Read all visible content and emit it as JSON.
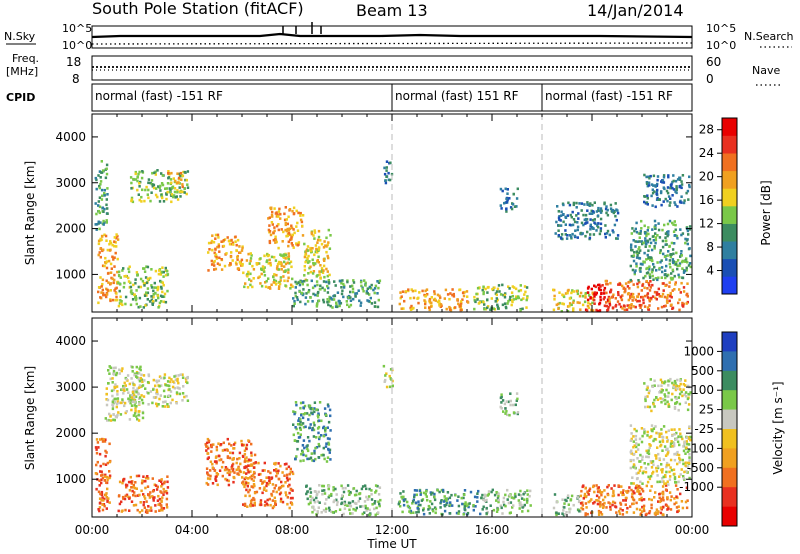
{
  "header": {
    "station": "South Pole Station (fitACF)",
    "beam": "Beam 13",
    "date": "14/Jan/2014"
  },
  "top_panels": {
    "nsky_label": "N.Sky",
    "nsky_ticks": [
      "10^5",
      "10^0"
    ],
    "nsearch_label": "N.Search",
    "freq_label_line1": "Freq.",
    "freq_label_line2": "[MHz]",
    "freq_ticks": [
      "18",
      "8"
    ],
    "nave_label": "Nave",
    "nave_ticks": [
      "60",
      "0"
    ],
    "cpid_label": "CPID",
    "cpid_segments": [
      {
        "label": "normal (fast) -151 RF",
        "start_hour": 0
      },
      {
        "label": "normal (fast) 151 RF",
        "start_hour": 12
      },
      {
        "label": "normal (fast) -151 RF",
        "start_hour": 18
      }
    ]
  },
  "chart_data": [
    {
      "type": "heatmap",
      "title": "Power",
      "ylabel": "Slant Range [km]",
      "xlabel": "Time UT",
      "x_ticks": [
        "00:00",
        "04:00",
        "08:00",
        "12:00",
        "16:00",
        "20:00",
        "00:00"
      ],
      "y_ticks": [
        1000,
        2000,
        3000,
        4000
      ],
      "ylim": [
        180,
        4500
      ],
      "xlim_hours": [
        0,
        24
      ],
      "colorbar": {
        "label": "Power [dB]",
        "ticks": [
          4,
          8,
          12,
          16,
          20,
          24,
          28
        ],
        "range": [
          0,
          30
        ],
        "colors": [
          "#1f3ff0",
          "#1a4fb4",
          "#2f7fa0",
          "#3c8c60",
          "#7ac848",
          "#f0d020",
          "#f0a020",
          "#f07020",
          "#e83020",
          "#e80000"
        ]
      },
      "clusters": [
        {
          "t0": 0.1,
          "t1": 0.6,
          "r0": 2000,
          "r1": 3500,
          "level": 3
        },
        {
          "t0": 0.2,
          "t1": 1.0,
          "r0": 400,
          "r1": 1900,
          "level": 6
        },
        {
          "t0": 1.5,
          "t1": 3.8,
          "r0": 2600,
          "r1": 3300,
          "level": 4
        },
        {
          "t0": 3.0,
          "t1": 3.6,
          "r0": 2900,
          "r1": 3250,
          "level": 6
        },
        {
          "t0": 1.0,
          "t1": 3.0,
          "r0": 300,
          "r1": 1200,
          "level": 4
        },
        {
          "t0": 4.6,
          "t1": 6.0,
          "r0": 1100,
          "r1": 1900,
          "level": 6
        },
        {
          "t0": 6.0,
          "t1": 8.0,
          "r0": 700,
          "r1": 1500,
          "level": 5
        },
        {
          "t0": 7.0,
          "t1": 8.4,
          "r0": 1600,
          "r1": 2500,
          "level": 6
        },
        {
          "t0": 8.4,
          "t1": 9.5,
          "r0": 900,
          "r1": 2000,
          "level": 5
        },
        {
          "t0": 8.0,
          "t1": 11.5,
          "r0": 300,
          "r1": 900,
          "level": 3
        },
        {
          "t0": 11.6,
          "t1": 12.0,
          "r0": 3000,
          "r1": 3500,
          "level": 2
        },
        {
          "t0": 12.2,
          "t1": 15.0,
          "r0": 250,
          "r1": 700,
          "level": 6
        },
        {
          "t0": 15.2,
          "t1": 17.5,
          "r0": 250,
          "r1": 800,
          "level": 4
        },
        {
          "t0": 16.3,
          "t1": 17.0,
          "r0": 2400,
          "r1": 2900,
          "level": 2
        },
        {
          "t0": 18.5,
          "t1": 21.0,
          "r0": 1800,
          "r1": 2600,
          "level": 2
        },
        {
          "t0": 18.4,
          "t1": 20.0,
          "r0": 220,
          "r1": 700,
          "level": 5
        },
        {
          "t0": 19.7,
          "t1": 20.7,
          "r0": 220,
          "r1": 800,
          "level": 9
        },
        {
          "t0": 20.5,
          "t1": 23.8,
          "r0": 250,
          "r1": 900,
          "level": 7
        },
        {
          "t0": 21.5,
          "t1": 23.9,
          "r0": 900,
          "r1": 2200,
          "level": 3
        },
        {
          "t0": 22.0,
          "t1": 23.9,
          "r0": 2500,
          "r1": 3200,
          "level": 2
        }
      ]
    },
    {
      "type": "heatmap",
      "title": "Velocity",
      "ylabel": "Slant Range [km]",
      "xlabel": "Time UT",
      "x_ticks": [
        "00:00",
        "04:00",
        "08:00",
        "12:00",
        "16:00",
        "20:00",
        "00:00"
      ],
      "y_ticks": [
        1000,
        2000,
        3000,
        4000
      ],
      "ylim": [
        180,
        4500
      ],
      "xlim_hours": [
        0,
        24
      ],
      "colorbar": {
        "label": "Velocity [m s⁻¹]",
        "ticks": [
          "1000",
          "500",
          "100",
          "25",
          "-25",
          "-100",
          "-500",
          "-1000"
        ],
        "colors": [
          "#1f3fc0",
          "#2f6fb0",
          "#3c8c60",
          "#7ac848",
          "#c8c8c0",
          "#f0c020",
          "#f0a020",
          "#f07020",
          "#e83020",
          "#e80000"
        ]
      },
      "clusters": [
        {
          "t0": 0.1,
          "t1": 0.7,
          "r0": 300,
          "r1": 1900,
          "level": 7
        },
        {
          "t0": 0.5,
          "t1": 2.0,
          "r0": 2300,
          "r1": 3500,
          "level": 4
        },
        {
          "t0": 1.5,
          "t1": 3.8,
          "r0": 2600,
          "r1": 3300,
          "level": 4
        },
        {
          "t0": 1.0,
          "t1": 3.0,
          "r0": 300,
          "r1": 1100,
          "level": 7
        },
        {
          "t0": 4.5,
          "t1": 6.5,
          "r0": 900,
          "r1": 1900,
          "level": 7
        },
        {
          "t0": 6.0,
          "t1": 8.0,
          "r0": 400,
          "r1": 1400,
          "level": 7
        },
        {
          "t0": 8.0,
          "t1": 9.5,
          "r0": 1400,
          "r1": 2700,
          "level": 2
        },
        {
          "t0": 8.5,
          "t1": 11.5,
          "r0": 250,
          "r1": 900,
          "level": 3
        },
        {
          "t0": 11.6,
          "t1": 12.0,
          "r0": 3000,
          "r1": 3500,
          "level": 4
        },
        {
          "t0": 12.2,
          "t1": 15.5,
          "r0": 250,
          "r1": 800,
          "level": 2
        },
        {
          "t0": 15.5,
          "t1": 17.5,
          "r0": 250,
          "r1": 800,
          "level": 3
        },
        {
          "t0": 16.3,
          "t1": 17.0,
          "r0": 2400,
          "r1": 2900,
          "level": 3
        },
        {
          "t0": 18.4,
          "t1": 19.5,
          "r0": 250,
          "r1": 700,
          "level": 3
        },
        {
          "t0": 19.5,
          "t1": 23.8,
          "r0": 250,
          "r1": 900,
          "level": 7
        },
        {
          "t0": 21.5,
          "t1": 23.9,
          "r0": 900,
          "r1": 2200,
          "level": 4
        },
        {
          "t0": 22.0,
          "t1": 23.9,
          "r0": 2500,
          "r1": 3200,
          "level": 4
        }
      ]
    }
  ]
}
